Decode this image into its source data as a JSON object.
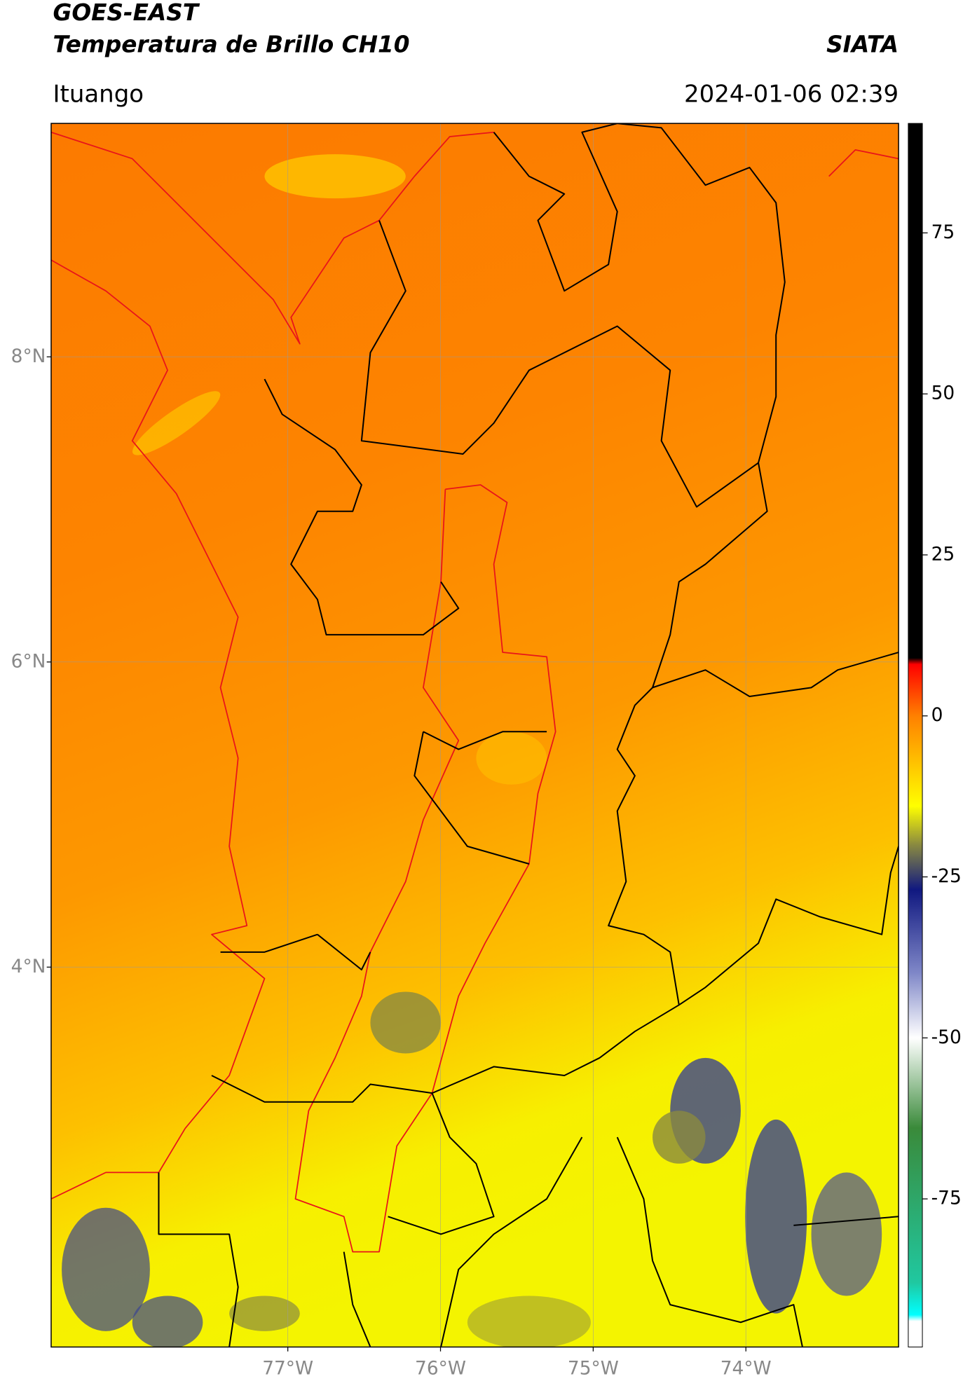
{
  "header": {
    "satellite": "GOES-EAST",
    "product": "Temperatura de Brillo CH10",
    "org": "SIATA",
    "location": "Ituango",
    "datetime": "2024-01-06 02:39"
  },
  "map": {
    "latlim": [
      1.51,
      9.53
    ],
    "lonlim": [
      -78.55,
      -73.0
    ],
    "lat_ticks": [
      {
        "value": 4,
        "label": "4°N"
      },
      {
        "value": 6,
        "label": "6°N"
      },
      {
        "value": 8,
        "label": "8°N"
      }
    ],
    "lon_ticks": [
      {
        "value": -77,
        "label": "77°W"
      },
      {
        "value": -76,
        "label": "76°W"
      },
      {
        "value": -75,
        "label": "75°W"
      },
      {
        "value": -74,
        "label": "74°W"
      }
    ],
    "grid": true
  },
  "colorbar": {
    "lim": [
      -98,
      92
    ],
    "ticks": [
      -75,
      -50,
      -25,
      0,
      25,
      50,
      75
    ],
    "stops": [
      {
        "value": 92,
        "color": "#000000"
      },
      {
        "value": 9,
        "color": "#000000"
      },
      {
        "value": 8,
        "color": "#ff0000"
      },
      {
        "value": 0,
        "color": "#ff8000"
      },
      {
        "value": -14,
        "color": "#ffff00"
      },
      {
        "value": -20,
        "color": "#8a8a40"
      },
      {
        "value": -27,
        "color": "#101880"
      },
      {
        "value": -40,
        "color": "#8088c8"
      },
      {
        "value": -50,
        "color": "#ffffff"
      },
      {
        "value": -64,
        "color": "#3a8a3a"
      },
      {
        "value": -88,
        "color": "#20c8a0"
      },
      {
        "value": -93,
        "color": "#00ffff"
      },
      {
        "value": -94,
        "color": "#ffffff"
      },
      {
        "value": -98,
        "color": "#ffffff"
      }
    ]
  }
}
